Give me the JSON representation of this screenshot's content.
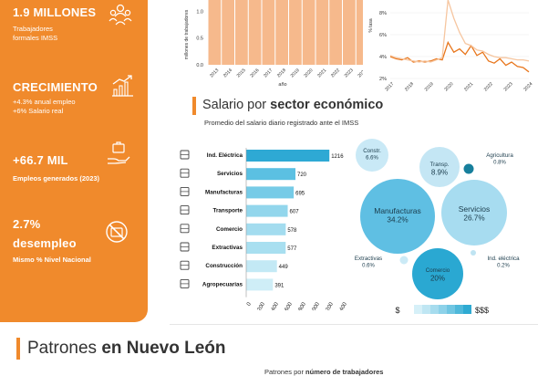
{
  "left_panel": {
    "stat1": {
      "value": "1.9 MILLONES",
      "line1": "Trabajadores",
      "line2": "formales IMSS"
    },
    "stat2": {
      "value": "CRECIMIENTO",
      "line1": "+4.3% anual empleo",
      "line2": "+6% Salario real"
    },
    "stat3": {
      "value": "+66.7 MIL",
      "line1": "Empleos generados (2023)"
    },
    "stat4": {
      "value": "2.7%",
      "value2": "desempleo",
      "line1": "Mismo % Nivel Nacional"
    },
    "accent": "#f08a2c"
  },
  "salary_section": {
    "title_light": "Salario por ",
    "title_bold": "sector económico",
    "subtitle": "Promedio del salario diario registrado ante el IMSS"
  },
  "patrones_section": {
    "title_light": "Patrones ",
    "title_bold": "en Nuevo León",
    "sub_light": "Patrones por ",
    "sub_bold": "número de trabajadores"
  },
  "chart_data": [
    {
      "type": "bar",
      "ylabel": "millones de trabajadores",
      "xlabel": "año",
      "categories": [
        "2013",
        "2014",
        "2015",
        "2016",
        "2017",
        "2018",
        "2019",
        "2020",
        "2021",
        "2022",
        "2023",
        "2024"
      ],
      "y_ticks": [
        "0.0",
        "0.5",
        "1.0"
      ],
      "ylim": [
        0,
        1.5
      ],
      "note": "top portion of chart cropped"
    },
    {
      "type": "line",
      "ylabel": "% tasa",
      "x_ticks": [
        "2017",
        "2018",
        "2019",
        "2020",
        "2021",
        "2022",
        "2023",
        "2024"
      ],
      "y_ticks": [
        "2%",
        "4%",
        "6%",
        "8%"
      ],
      "ylim": [
        2,
        8
      ],
      "series": [
        {
          "color": "#e8761c",
          "values": [
            4.0,
            3.8,
            3.7,
            3.9,
            3.5,
            3.6,
            3.5,
            3.6,
            3.8,
            3.7,
            5.3,
            4.4,
            4.7,
            4.2,
            5.0,
            4.1,
            4.4,
            3.6,
            3.4,
            3.8,
            3.2,
            3.5,
            3.1,
            3.0,
            2.6
          ]
        },
        {
          "color": "#f6c6a0",
          "values": [
            4.1,
            3.9,
            3.8,
            3.7,
            3.6,
            3.5,
            3.6,
            3.5,
            3.7,
            3.9,
            9.5,
            7.5,
            6.2,
            5.2,
            5.0,
            4.6,
            4.5,
            4.2,
            4.0,
            3.9,
            3.9,
            3.8,
            3.7,
            3.7,
            3.6
          ]
        }
      ]
    },
    {
      "type": "bar",
      "orientation": "horizontal",
      "categories": [
        "Ind. Eléctrica",
        "Servicios",
        "Manufacturas",
        "Transporte",
        "Comercio",
        "Extractivas",
        "Construcción",
        "Agropecuarias"
      ],
      "values": [
        1216,
        720,
        695,
        607,
        578,
        577,
        449,
        391
      ],
      "x_ticks": [
        "0",
        "200",
        "400",
        "600",
        "800",
        "1000",
        "1200",
        "1400"
      ],
      "xlim": [
        0,
        1400
      ],
      "icons": [
        "tower-icon",
        "people-icon",
        "factory-icon",
        "truck-icon",
        "store-icon",
        "mining-icon",
        "construction-icon",
        "farm-icon"
      ]
    },
    {
      "type": "bubble",
      "labels": [
        "Constr.",
        "Transp.",
        "Agricultura",
        "Manufacturas",
        "Servicios",
        "Extractivas",
        "Comercio",
        "Ind. eléctrica"
      ],
      "values": [
        "6.6%",
        "8.9%",
        "0.8%",
        "34.2%",
        "26.7%",
        "0.6%",
        "20%",
        "0.2%"
      ],
      "legend_low": "$",
      "legend_high": "$$$",
      "scale_colors": [
        "#d6f0f8",
        "#bfe6f3",
        "#a6dcee",
        "#8dd2e9",
        "#70c6e2",
        "#4fb8da",
        "#2eaad2"
      ]
    }
  ]
}
